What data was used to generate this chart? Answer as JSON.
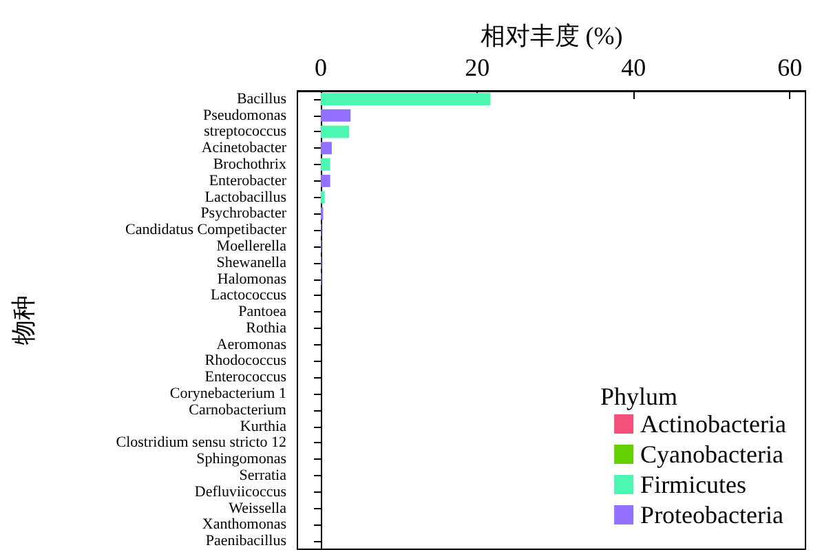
{
  "chart_data": {
    "type": "bar",
    "orientation": "horizontal",
    "stacked": true,
    "xlabel": "相对丰度 (%)",
    "ylabel": "物种",
    "legend_title": "Phylum",
    "legend": "bottom right",
    "categories": [
      "Bacillus",
      "Pseudomonas",
      "streptococcus",
      "Acinetobacter",
      "Brochothrix",
      "Enterobacter",
      "Lactobacillus",
      "Psychrobacter",
      "Candidatus Competibacter",
      "Moellerella",
      "Shewanella",
      "Halomonas",
      "Lactococcus",
      "Pantoea",
      "Rothia",
      "Aeromonas",
      "Rhodococcus",
      "Enterococcus",
      "Corynebacterium 1",
      "Carnobacterium",
      "Kurthia",
      "Clostridium sensu stricto 12",
      "Sphingomonas",
      "Serratia",
      "Defluviicoccus",
      "Weissella",
      "Xanthomonas",
      "Paenibacillus"
    ],
    "xlim": [
      -3,
      62
    ],
    "xticks": [
      0,
      20,
      40,
      60
    ],
    "series": [
      {
        "name": "Actinobacteria",
        "color": "#f5507a",
        "values": [
          null,
          null,
          null,
          null,
          null,
          null,
          null,
          null,
          null,
          null,
          null,
          null,
          null,
          null,
          0,
          null,
          0,
          null,
          0,
          null,
          null,
          null,
          null,
          null,
          null,
          null,
          null,
          null
        ]
      },
      {
        "name": "Cyanobacteria",
        "color": "#66d100",
        "values": [
          null,
          null,
          null,
          null,
          null,
          null,
          null,
          null,
          null,
          null,
          null,
          null,
          null,
          null,
          null,
          null,
          null,
          null,
          null,
          null,
          null,
          null,
          null,
          null,
          null,
          null,
          null,
          null
        ]
      },
      {
        "name": "Firmicutes",
        "color": "#4cf7b2",
        "values": [
          21.7,
          null,
          3.6,
          null,
          1.2,
          null,
          0.5,
          null,
          null,
          null,
          null,
          null,
          0,
          null,
          null,
          null,
          null,
          0,
          null,
          0,
          0,
          0,
          null,
          null,
          null,
          0,
          null,
          0
        ]
      },
      {
        "name": "Proteobacteria",
        "color": "#9370ff",
        "values": [
          null,
          3.8,
          null,
          1.4,
          null,
          1.2,
          null,
          0.3,
          0.1,
          0.1,
          0.1,
          0.1,
          null,
          0,
          null,
          0,
          null,
          null,
          null,
          null,
          null,
          null,
          0,
          0,
          0,
          null,
          0,
          null
        ]
      }
    ]
  }
}
